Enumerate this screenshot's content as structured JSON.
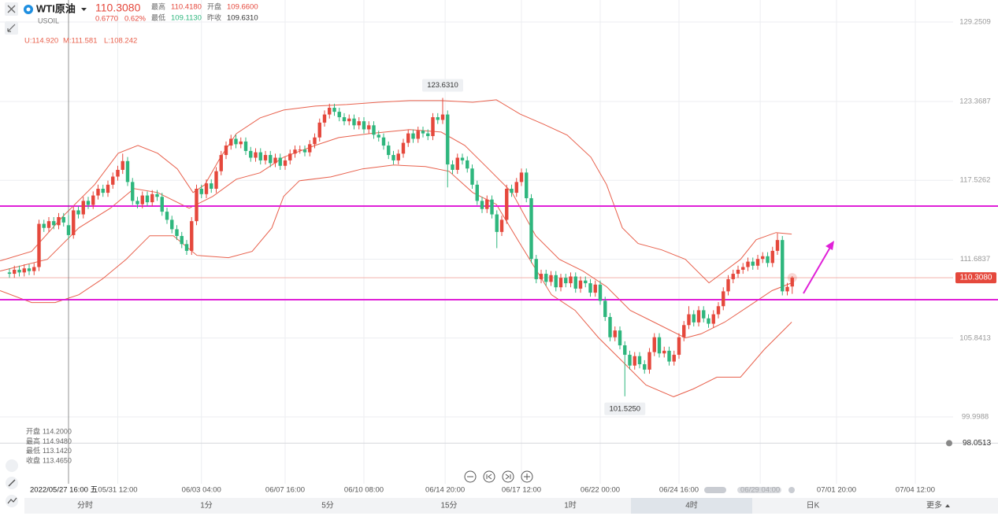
{
  "header": {
    "name": "WTI原油",
    "symbol": "USOIL",
    "price": "110.3080",
    "change": "0.6770",
    "change_pct": "0.62%",
    "stats": [
      {
        "label": "最高",
        "value": "110.4180"
      },
      {
        "label": "开盘",
        "value": "109.6600"
      },
      {
        "label": "最低",
        "value": "109.1130"
      },
      {
        "label": "昨收",
        "value": "109.6310"
      }
    ]
  },
  "tabs": {
    "items": [
      "分时",
      "1分",
      "5分",
      "15分",
      "1时",
      "4时",
      "日K",
      "更多"
    ],
    "active": 5
  },
  "chart_data": {
    "type": "candlestick",
    "indicator_values": [
      "U:114.920",
      "M:111.581",
      "L:108.242"
    ],
    "color_up": "#e5483c",
    "color_down": "#2eb67d",
    "band_color": "#e8604c",
    "open": [
      110.7,
      110.6,
      110.9,
      110.7,
      111.0,
      110.8,
      111.1,
      114.3,
      114.0,
      114.5,
      114.2,
      114.8,
      114.2,
      113.465,
      115.3,
      115.0,
      116.0,
      115.7,
      116.4,
      116.9,
      116.6,
      117.2,
      117.8,
      118.3,
      118.95,
      117.4,
      116.0,
      115.75,
      116.4,
      115.9,
      116.5,
      116.3,
      115.2,
      114.6,
      113.9,
      113.4,
      112.8,
      112.3,
      114.5,
      116.9,
      116.5,
      117.3,
      116.9,
      118.2,
      119.4,
      120.1,
      120.6,
      120.2,
      120.4,
      119.7,
      119.2,
      119.6,
      119.0,
      119.4,
      118.8,
      119.2,
      118.6,
      119.0,
      119.5,
      119.8,
      119.8,
      119.6,
      120.2,
      120.7,
      121.8,
      122.4,
      122.9,
      122.6,
      122.2,
      121.9,
      122.1,
      121.6,
      121.9,
      121.3,
      121.6,
      120.9,
      120.7,
      120.1,
      119.4,
      119.0,
      119.5,
      120.3,
      121.0,
      120.6,
      121.2,
      121.0,
      120.8,
      122.2,
      122.0,
      122.4,
      118.7,
      118.3,
      119.2,
      119.0,
      118.4,
      117.2,
      116.0,
      115.4,
      116.1,
      115.0,
      113.7,
      114.6,
      116.9,
      116.6,
      117.4,
      118.1,
      116.2,
      111.7,
      110.2,
      110.6,
      110.0,
      110.5,
      109.6,
      110.3,
      109.9,
      110.4,
      109.5,
      110.1,
      109.9,
      109.2,
      109.8,
      108.6,
      107.4,
      105.9,
      106.4,
      105.3,
      104.6,
      103.8,
      104.5,
      103.9,
      103.5,
      104.8,
      105.9,
      104.7,
      104.9,
      104.1,
      104.6,
      105.9,
      106.8,
      107.6,
      107.0,
      107.9,
      107.3,
      106.9,
      107.6,
      108.2,
      109.3,
      110.2,
      110.6,
      110.9,
      111.1,
      111.5,
      111.2,
      111.7,
      111.9,
      111.4,
      112.3,
      113.1,
      109.3,
      109.66
    ],
    "high": [
      111.0,
      111.2,
      111.2,
      111.3,
      111.3,
      111.4,
      114.6,
      114.6,
      114.8,
      114.8,
      115.1,
      115.1,
      114.948,
      115.6,
      115.6,
      116.3,
      116.3,
      116.7,
      117.2,
      117.2,
      117.5,
      118.1,
      118.6,
      119.5,
      119.25,
      117.7,
      116.3,
      116.7,
      116.7,
      116.8,
      116.8,
      116.6,
      115.5,
      114.9,
      114.2,
      113.7,
      113.1,
      114.8,
      117.2,
      117.2,
      117.6,
      117.6,
      118.5,
      119.7,
      120.4,
      120.9,
      120.9,
      120.7,
      120.7,
      120.0,
      119.9,
      119.9,
      119.7,
      119.7,
      119.5,
      119.5,
      119.3,
      119.8,
      120.1,
      120.1,
      120.1,
      120.5,
      121.0,
      122.1,
      122.7,
      123.2,
      123.2,
      122.9,
      122.5,
      122.4,
      122.4,
      122.2,
      122.2,
      121.9,
      121.9,
      121.2,
      121.0,
      120.4,
      119.7,
      119.8,
      120.6,
      121.3,
      121.3,
      121.5,
      121.5,
      121.3,
      122.5,
      122.5,
      123.631,
      122.7,
      119.0,
      119.5,
      119.5,
      119.3,
      118.7,
      117.5,
      116.3,
      116.4,
      116.4,
      115.3,
      114.9,
      117.2,
      117.2,
      117.7,
      118.4,
      118.4,
      116.5,
      112.0,
      110.9,
      110.9,
      110.8,
      110.8,
      110.6,
      110.6,
      110.7,
      110.7,
      110.4,
      110.4,
      110.2,
      110.1,
      110.1,
      108.9,
      107.7,
      106.7,
      106.7,
      105.6,
      104.9,
      104.8,
      104.8,
      104.2,
      105.1,
      106.2,
      106.2,
      105.2,
      105.2,
      104.9,
      106.2,
      107.1,
      108.2,
      107.9,
      108.2,
      108.2,
      107.6,
      107.9,
      108.5,
      109.6,
      110.5,
      110.9,
      111.2,
      111.4,
      111.8,
      111.8,
      112.0,
      112.2,
      112.2,
      112.6,
      113.6,
      113.4,
      109.93,
      110.418
    ],
    "low": [
      110.3,
      110.3,
      110.4,
      110.4,
      110.5,
      110.5,
      110.8,
      113.7,
      113.7,
      113.9,
      113.9,
      114.1,
      113.142,
      113.2,
      114.7,
      114.7,
      115.4,
      115.4,
      116.1,
      116.3,
      116.3,
      116.9,
      117.5,
      118.0,
      117.1,
      115.7,
      115.45,
      115.45,
      115.6,
      115.6,
      116.0,
      114.9,
      114.3,
      113.6,
      113.1,
      112.5,
      112.0,
      112.0,
      114.2,
      116.2,
      116.2,
      116.6,
      116.6,
      117.9,
      119.1,
      119.8,
      119.9,
      119.9,
      119.4,
      118.9,
      118.9,
      118.7,
      118.7,
      118.5,
      118.5,
      118.3,
      118.3,
      118.7,
      119.2,
      119.5,
      119.3,
      119.3,
      119.9,
      120.4,
      121.5,
      122.1,
      122.3,
      121.9,
      121.6,
      121.6,
      121.3,
      121.3,
      121.0,
      121.0,
      120.6,
      120.4,
      119.8,
      119.1,
      118.7,
      118.7,
      119.2,
      120.0,
      120.3,
      120.3,
      120.7,
      120.5,
      120.5,
      121.7,
      121.7,
      117.0,
      118.0,
      118.0,
      118.7,
      118.1,
      116.9,
      115.7,
      115.1,
      115.1,
      114.7,
      112.5,
      113.4,
      114.3,
      116.3,
      116.3,
      117.1,
      115.9,
      111.4,
      109.9,
      109.9,
      109.7,
      109.7,
      109.3,
      109.3,
      109.6,
      109.6,
      109.2,
      109.2,
      109.6,
      108.9,
      108.9,
      108.3,
      107.1,
      105.6,
      105.6,
      105.0,
      101.525,
      103.5,
      103.5,
      103.6,
      103.2,
      103.2,
      104.5,
      104.4,
      104.4,
      103.8,
      103.8,
      104.3,
      105.6,
      106.5,
      106.7,
      106.7,
      107.0,
      106.6,
      106.6,
      107.3,
      107.9,
      109.0,
      109.9,
      110.3,
      110.6,
      110.8,
      110.9,
      110.9,
      111.4,
      111.1,
      111.1,
      112.0,
      109.0,
      109.0,
      109.113
    ],
    "close": [
      110.6,
      110.9,
      110.7,
      111.0,
      110.8,
      111.1,
      114.3,
      114.0,
      114.5,
      114.2,
      114.8,
      114.4,
      113.465,
      115.3,
      115.0,
      116.0,
      115.7,
      116.4,
      116.9,
      116.6,
      117.2,
      117.8,
      118.3,
      118.95,
      117.4,
      116.0,
      115.75,
      116.4,
      115.9,
      116.5,
      116.3,
      115.2,
      114.6,
      113.9,
      113.4,
      112.8,
      112.3,
      114.5,
      116.9,
      116.5,
      117.3,
      116.9,
      118.2,
      119.4,
      120.1,
      120.6,
      120.2,
      120.4,
      119.7,
      119.2,
      119.6,
      119.0,
      119.4,
      118.8,
      119.2,
      118.6,
      119.0,
      119.5,
      119.8,
      119.8,
      119.6,
      120.2,
      120.7,
      121.8,
      122.4,
      122.9,
      122.6,
      122.2,
      121.9,
      122.1,
      121.6,
      121.9,
      121.3,
      121.6,
      120.9,
      120.7,
      120.1,
      119.4,
      119.0,
      119.5,
      120.3,
      121.0,
      120.6,
      121.2,
      121.0,
      120.8,
      122.2,
      122.0,
      122.4,
      118.7,
      118.3,
      119.2,
      119.0,
      118.4,
      117.2,
      116.0,
      115.4,
      116.1,
      115.0,
      113.7,
      114.6,
      116.9,
      116.6,
      117.4,
      118.1,
      116.2,
      111.7,
      110.2,
      110.6,
      110.0,
      110.5,
      109.6,
      110.3,
      109.9,
      110.4,
      109.5,
      110.1,
      109.9,
      109.2,
      109.8,
      108.6,
      107.4,
      105.9,
      106.4,
      105.3,
      104.6,
      103.8,
      104.5,
      103.9,
      103.5,
      104.8,
      105.9,
      104.7,
      104.9,
      104.1,
      104.6,
      105.9,
      106.8,
      107.6,
      107.0,
      107.9,
      107.3,
      106.9,
      107.6,
      108.2,
      109.3,
      110.2,
      110.6,
      110.9,
      111.1,
      111.5,
      111.2,
      111.7,
      111.9,
      111.4,
      112.3,
      113.1,
      109.3,
      109.631,
      110.308
    ],
    "bands": [
      {
        "x": [
          -1.9,
          4.5,
          10.9,
          17.3,
          22.1,
          26.1,
          30.1,
          34.1,
          37.3,
          39.7,
          42.9,
          46.1,
          50.9,
          55.7,
          62.1,
          68.5,
          74.9,
          81.3,
          87.7,
          94.1,
          98.9,
          103.7,
          108.5,
          113.3,
          118.1,
          121.3,
          124.5,
          127.7,
          132.5,
          137.3,
          142.1,
          145.3,
          148.5,
          151.7,
          155.7,
          158.9
        ],
        "values": [
          111.56,
          112.26,
          114.87,
          117.2,
          119.53,
          120.11,
          119.53,
          118.37,
          116.62,
          117.2,
          119.24,
          120.99,
          122.15,
          122.73,
          123.02,
          123.14,
          123.31,
          123.43,
          123.43,
          123.31,
          123.49,
          122.44,
          121.68,
          120.87,
          119.24,
          117.2,
          114.0,
          112.84,
          112.37,
          111.67,
          109.93,
          110.8,
          111.67,
          113.13,
          113.65,
          113.54
        ]
      },
      {
        "x": [
          -1.9,
          7.7,
          14.1,
          20.5,
          25.3,
          30.1,
          36.5,
          41.3,
          46.1,
          50.9,
          55.7,
          62.1,
          66.9,
          73.3,
          81.3,
          87.7,
          92.5,
          97.3,
          102.1,
          106.9,
          111.7,
          116.5,
          121.3,
          126.1,
          130.9,
          137.3,
          140.5,
          145.3,
          150.1,
          154.9,
          158.9
        ],
        "values": [
          110.8,
          111.67,
          114.0,
          115.46,
          116.91,
          116.62,
          115.46,
          116.33,
          117.61,
          118.08,
          119.24,
          120.11,
          120.69,
          120.99,
          121.28,
          121.1,
          120.11,
          118.37,
          116.62,
          113.42,
          111.67,
          110.8,
          109.64,
          107.89,
          107.02,
          105.85,
          106.15,
          107.02,
          108.18,
          109.35,
          109.93
        ]
      },
      {
        "x": [
          -1.9,
          4.5,
          9.3,
          14.1,
          18.9,
          23.7,
          28.5,
          33.3,
          38.1,
          44.5,
          49.3,
          53.3,
          55.7,
          58.9,
          65.3,
          71.7,
          78.1,
          84.5,
          89.3,
          94.1,
          98.9,
          103.7,
          110.1,
          114.9,
          119.7,
          124.5,
          129.3,
          134.9,
          138.9,
          143.7,
          148.5,
          153.3,
          158.9
        ],
        "values": [
          109.35,
          108.47,
          108.47,
          109.05,
          110.22,
          111.67,
          113.42,
          113.42,
          111.96,
          111.79,
          112.26,
          114.0,
          116.33,
          117.49,
          117.78,
          118.37,
          118.66,
          118.54,
          118.19,
          116.62,
          115.75,
          112.84,
          109.05,
          107.89,
          105.85,
          104.11,
          102.36,
          101.49,
          102.07,
          102.94,
          102.94,
          104.98,
          107.02
        ]
      }
    ],
    "xlim": [
      -1.92,
      191.68
    ],
    "xticks": [
      {
        "value": 22,
        "label": "05/31 12:00"
      },
      {
        "value": 39,
        "label": "06/03 04:00"
      },
      {
        "value": 56,
        "label": "06/07 16:00"
      },
      {
        "value": 72,
        "label": "06/10 08:00"
      },
      {
        "value": 88.5,
        "label": "06/14 20:00"
      },
      {
        "value": 104,
        "label": "06/17 12:00"
      },
      {
        "value": 120,
        "label": "06/22 00:00"
      },
      {
        "value": 136,
        "label": "06/24 16:00"
      },
      {
        "value": 152.5,
        "label": "06/29 04:00"
      },
      {
        "value": 168,
        "label": "07/01 20:00"
      },
      {
        "value": 184,
        "label": "07/04 12:00"
      }
    ],
    "ylim": [
      95.0458,
      130.8825
    ],
    "yticks": [
      129.2509,
      123.3687,
      117.5262,
      111.6837,
      105.8413,
      99.9988
    ],
    "grid": true,
    "hlines": [
      {
        "value": 115.615,
        "color": "#e020d8"
      },
      {
        "value": 108.68,
        "color": "#e020d8"
      }
    ],
    "last_price": {
      "value": 110.308,
      "label": "110.3080"
    },
    "max_label": {
      "x": 88,
      "value": 123.631,
      "label": "123.6310"
    },
    "min_label": {
      "x": 125,
      "value": 101.525,
      "label": "101.5250"
    },
    "alert": {
      "value": 98.0513,
      "label": "98.0513"
    },
    "crosshair": {
      "x": 12,
      "label": "2022/05/27 16:00 五",
      "ohlc": [
        {
          "label": "开盘",
          "value": "114.2000"
        },
        {
          "label": "最高",
          "value": "114.9480"
        },
        {
          "label": "最低",
          "value": "113.1420"
        },
        {
          "label": "收盘",
          "value": "113.4650"
        }
      ]
    }
  }
}
